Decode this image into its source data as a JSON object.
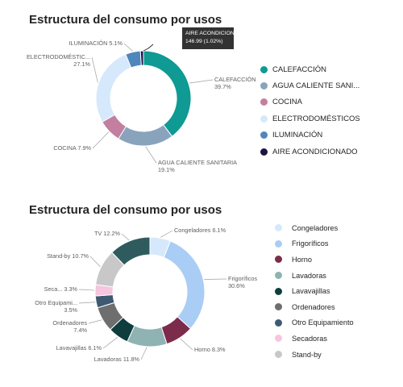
{
  "chart_data": [
    {
      "type": "pie",
      "title": "Estructura del consumo por usos",
      "categories": [
        "CALEFACCIÓN",
        "AGUA CALIENTE SANITARIA",
        "COCINA",
        "ELECTRODOMÉSTICOS",
        "ILUMINACIÓN",
        "AIRE ACONDICIONADO"
      ],
      "values": [
        39.7,
        19.1,
        7.9,
        27.1,
        5.1,
        1.02
      ],
      "colors": [
        "#0f9a94",
        "#8aa3bd",
        "#c27fa0",
        "#d6e8fb",
        "#4f86bb",
        "#1c1343"
      ],
      "slice_labels": [
        {
          "name": "CALEFACCIÓN",
          "value": "39.7%"
        },
        {
          "name": "AGUA CALIENTE SANITARIA",
          "value": "19.1%"
        },
        {
          "name": "COCINA",
          "value": "7.9%"
        },
        {
          "name": "ELECTRODOMÉSTIC...",
          "value": "27.1%"
        },
        {
          "name": "ILUMINACIÓN",
          "value": "5.1%"
        }
      ],
      "legend": [
        "CALEFACCIÓN",
        "AGUA CALIENTE SANI...",
        "COCINA",
        "ELECTRODOMÉSTICOS",
        "ILUMINACIÓN",
        "AIRE ACONDICIONADO"
      ],
      "legend_position": "right",
      "tooltip": {
        "name": "AIRE ACONDICIONADO",
        "value": "146.99 (1.02%)"
      }
    },
    {
      "type": "pie",
      "title": "Estructura del consumo por usos",
      "categories": [
        "Congeladores",
        "Frigoríficos",
        "Horno",
        "Lavadoras",
        "Lavavajillas",
        "Ordenadores",
        "Otro Equipamiento",
        "Secadoras",
        "Stand-by",
        "TV"
      ],
      "values": [
        6.1,
        30.6,
        8.3,
        11.8,
        6.1,
        7.4,
        3.5,
        3.3,
        10.7,
        12.2
      ],
      "colors": [
        "#d6e8fb",
        "#a9cdf5",
        "#7c2c4a",
        "#8fb3b3",
        "#0f3d3d",
        "#6e6e6e",
        "#3e5a72",
        "#f5c6dd",
        "#c8c8c8",
        "#2f5b5e"
      ],
      "slice_labels": [
        {
          "name": "Congeladores",
          "value": "6.1%"
        },
        {
          "name": "Frigoríficos",
          "value": "30.6%"
        },
        {
          "name": "Horno",
          "value": "8.3%"
        },
        {
          "name": "Lavadoras",
          "value": "11.8%"
        },
        {
          "name": "Lavavajillas",
          "value": "6.1%"
        },
        {
          "name": "Ordenadores",
          "value": "7.4%"
        },
        {
          "name": "Otro Equipami...",
          "value": "3.5%"
        },
        {
          "name": "Seca...",
          "value": "3.3%"
        },
        {
          "name": "Stand-by",
          "value": "10.7%"
        },
        {
          "name": "TV",
          "value": "12.2%"
        }
      ],
      "legend": [
        "Congeladores",
        "Frigoríficos",
        "Horno",
        "Lavadoras",
        "Lavavajillas",
        "Ordenadores",
        "Otro Equipamiento",
        "Secadoras",
        "Stand-by"
      ],
      "legend_colors": [
        "#d6e8fb",
        "#a9cdf5",
        "#7c2c4a",
        "#8fb3b3",
        "#0f3d3d",
        "#6e6e6e",
        "#3e5a72",
        "#f5c6dd",
        "#c8c8c8"
      ],
      "legend_position": "right"
    }
  ]
}
